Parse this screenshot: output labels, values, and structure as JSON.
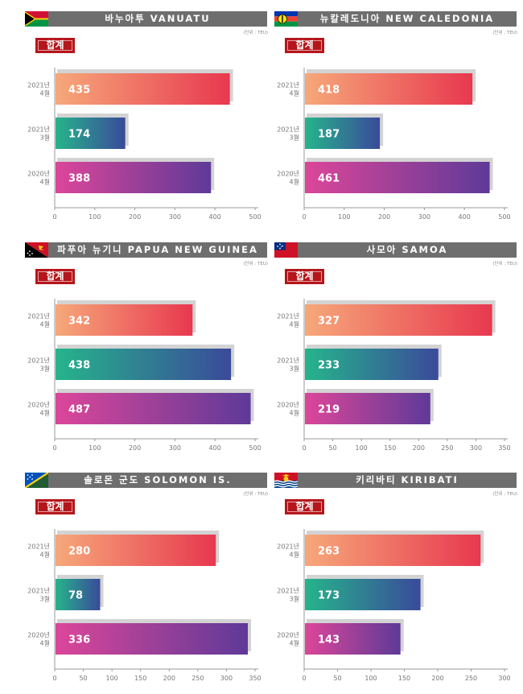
{
  "colors": {
    "bar_2021_4": [
      "#f6a87a",
      "#e8384f"
    ],
    "bar_2021_3": [
      "#26b48b",
      "#3a4a9a"
    ],
    "bar_2020_4": [
      "#dc4699",
      "#5e3a98"
    ],
    "title_bg": "#6e6e6e",
    "badge_bg": "#b5161b",
    "shadow": "#d3d3d3"
  },
  "chart_data": [
    {
      "type": "bar",
      "title": "바누아투 VANUATU",
      "flag_icon": "vanuatu-flag-icon",
      "unit": "(단위 : TEU)",
      "badge": "합계",
      "categories": [
        [
          "2021년",
          "4월"
        ],
        [
          "2021년",
          "3월"
        ],
        [
          "2020년",
          "4월"
        ]
      ],
      "values": [
        435,
        174,
        388
      ],
      "ticks": [
        0,
        100,
        200,
        300,
        400,
        500
      ],
      "xlim": [
        0,
        500
      ]
    },
    {
      "type": "bar",
      "title": "뉴칼레도니아 NEW CALEDONIA",
      "flag_icon": "new-caledonia-flag-icon",
      "unit": "(단위 : TEU)",
      "badge": "합계",
      "categories": [
        [
          "2021년",
          "4월"
        ],
        [
          "2021년",
          "3월"
        ],
        [
          "2020년",
          "4월"
        ]
      ],
      "values": [
        418,
        187,
        461
      ],
      "ticks": [
        0,
        100,
        200,
        300,
        400,
        500
      ],
      "xlim": [
        0,
        500
      ]
    },
    {
      "type": "bar",
      "title": "파푸아 뉴기니 PAPUA NEW GUINEA",
      "flag_icon": "papua-new-guinea-flag-icon",
      "unit": "(단위 : TEU)",
      "badge": "합계",
      "categories": [
        [
          "2021년",
          "4월"
        ],
        [
          "2021년",
          "3월"
        ],
        [
          "2020년",
          "4월"
        ]
      ],
      "values": [
        342,
        438,
        487
      ],
      "ticks": [
        0,
        100,
        200,
        300,
        400,
        500
      ],
      "xlim": [
        0,
        500
      ]
    },
    {
      "type": "bar",
      "title": "사모아 SAMOA",
      "flag_icon": "samoa-flag-icon",
      "unit": "(단위 : TEU)",
      "badge": "합계",
      "categories": [
        [
          "2021년",
          "4월"
        ],
        [
          "2021년",
          "3월"
        ],
        [
          "2020년",
          "4월"
        ]
      ],
      "values": [
        327,
        233,
        219
      ],
      "ticks": [
        0,
        50,
        100,
        150,
        200,
        250,
        300,
        350
      ],
      "xlim": [
        0,
        350
      ]
    },
    {
      "type": "bar",
      "title": "솔로몬 군도 SOLOMON IS.",
      "flag_icon": "solomon-islands-flag-icon",
      "unit": "(단위 : TEU)",
      "badge": "합계",
      "categories": [
        [
          "2021년",
          "4월"
        ],
        [
          "2021년",
          "3월"
        ],
        [
          "2020년",
          "4월"
        ]
      ],
      "values": [
        280,
        78,
        336
      ],
      "ticks": [
        0,
        50,
        100,
        150,
        200,
        250,
        300,
        350
      ],
      "xlim": [
        0,
        350
      ]
    },
    {
      "type": "bar",
      "title": "키리바티 KIRIBATI",
      "flag_icon": "kiribati-flag-icon",
      "unit": "(단위 : TEU)",
      "badge": "합계",
      "categories": [
        [
          "2021년",
          "4월"
        ],
        [
          "2021년",
          "3월"
        ],
        [
          "2020년",
          "4월"
        ]
      ],
      "values": [
        263,
        173,
        143
      ],
      "ticks": [
        0,
        50,
        100,
        150,
        200,
        250,
        300
      ],
      "xlim": [
        0,
        300
      ]
    }
  ]
}
